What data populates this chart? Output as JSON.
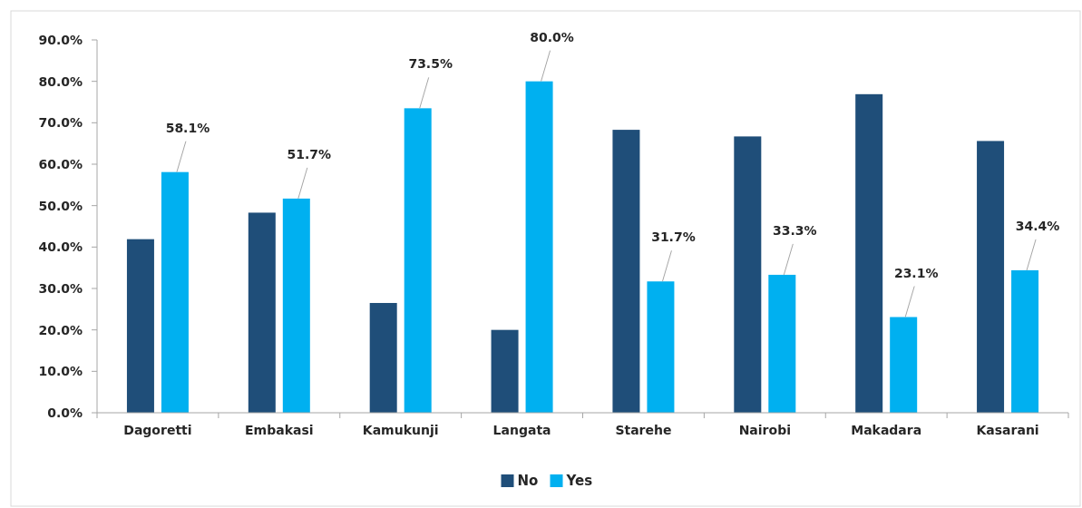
{
  "chart_data": {
    "type": "bar",
    "categories": [
      "Dagoretti",
      "Embakasi",
      "Kamukunji",
      "Langata",
      "Starehe",
      "Nairobi",
      "Makadara",
      "Kasarani"
    ],
    "series": [
      {
        "name": "No",
        "color": "#1f4e79",
        "values": [
          41.9,
          48.3,
          26.5,
          20.0,
          68.3,
          66.7,
          76.9,
          65.6
        ]
      },
      {
        "name": "Yes",
        "color": "#00b0f0",
        "values": [
          58.1,
          51.7,
          73.5,
          80.0,
          31.7,
          33.3,
          23.1,
          34.4
        ],
        "value_labels": [
          "58.1%",
          "51.7%",
          "73.5%",
          "80.0%",
          "31.7%",
          "33.3%",
          "23.1%",
          "34.4%"
        ]
      }
    ],
    "ylim": [
      0,
      90
    ],
    "yticks": [
      {
        "value": 0,
        "label": "0.0%"
      },
      {
        "value": 10,
        "label": "10.0%"
      },
      {
        "value": 20,
        "label": "20.0%"
      },
      {
        "value": 30,
        "label": "30.0%"
      },
      {
        "value": 40,
        "label": "40.0%"
      },
      {
        "value": 50,
        "label": "50.0%"
      },
      {
        "value": 60,
        "label": "60.0%"
      },
      {
        "value": 70,
        "label": "70.0%"
      },
      {
        "value": 80,
        "label": "80.0%"
      },
      {
        "value": 90,
        "label": "90.0%"
      }
    ],
    "grid": false,
    "legend": "bottom"
  }
}
